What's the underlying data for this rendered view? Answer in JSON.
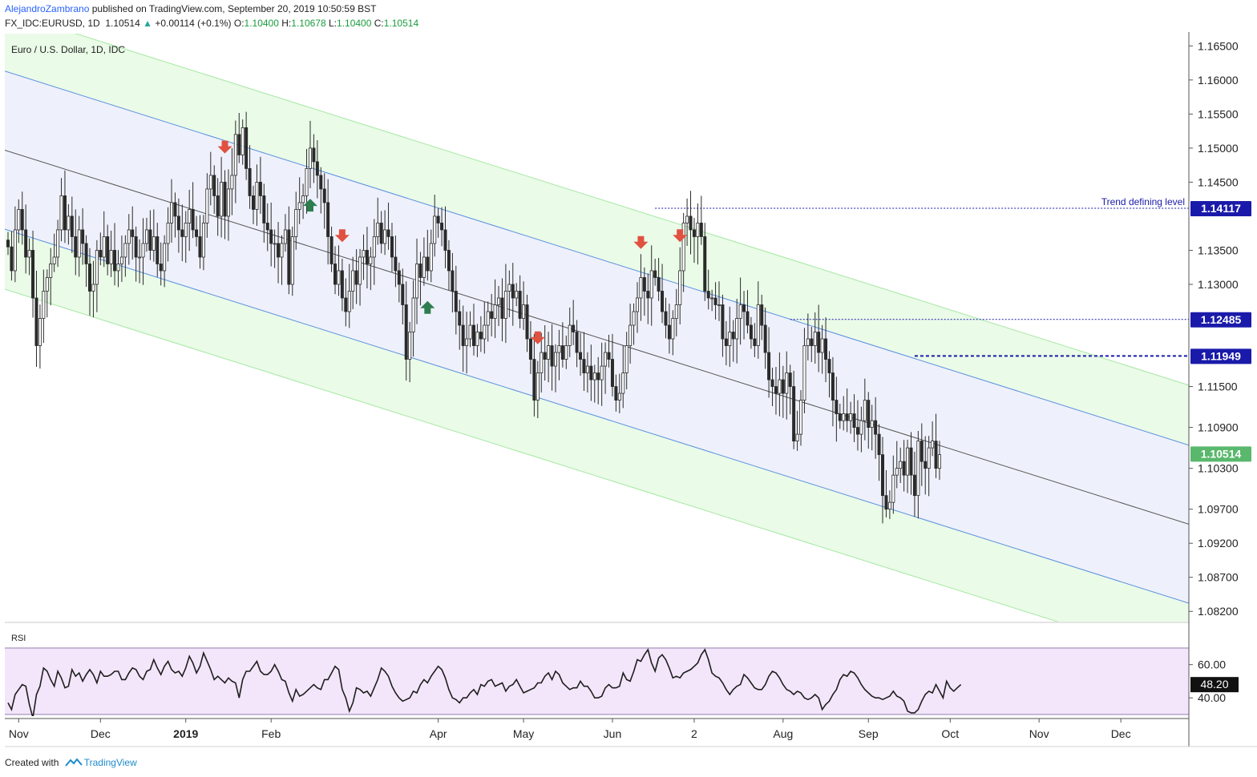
{
  "header": {
    "author": "AlejandroZambrano",
    "published_text": "published on TradingView.com, September 20, 2019 10:50:59 BST",
    "symbol": "FX_IDC:EURUSD, 1D",
    "last": "1.10514",
    "change_arrow": "▲",
    "change": "+0.00114 (+0.1%)",
    "o_label": "O:",
    "o_value": "1.10400",
    "h_label": "H:",
    "h_value": "1.10678",
    "l_label": "L:",
    "l_value": "1.10400",
    "c_label": "C:",
    "c_value": "1.10514"
  },
  "footer": {
    "created_with": "Created with",
    "brand": "TradingView"
  },
  "colors": {
    "candle": "#2a2a2a",
    "channel_blue": "#5b8fe0",
    "channel_fill": "#eef1fb",
    "outer_fill": "#eafbe8",
    "outer_edge": "#9ee69a",
    "mid_line": "#555555",
    "level_blue": "#1a1aaa",
    "arrow_down": "#e0513f",
    "arrow_up": "#2e7d4f",
    "rsi_band": "#f3e6fb",
    "rsi_band_edge": "#b7a3c9",
    "price_label_bg": "#1a1aaa",
    "current_label_bg": "#59b86c"
  },
  "chart_data": {
    "type": "candlestick",
    "title": "Euro / U.S. Dollar, 1D, IDC",
    "instrument": "EURUSD",
    "x_axis_labels": [
      "Nov",
      "Dec",
      "2019",
      "Feb",
      "Apr",
      "May",
      "Jun",
      "2",
      "Aug",
      "Sep",
      "Oct",
      "Nov",
      "Dec"
    ],
    "y_axis_ticks": [
      "1.16500",
      "1.16000",
      "1.15500",
      "1.15000",
      "1.14500",
      "1.13500",
      "1.13000",
      "1.11500",
      "1.10900",
      "1.10300",
      "1.09700",
      "1.09200",
      "1.08700",
      "1.08200"
    ],
    "ylim": [
      1.0805,
      1.1668
    ],
    "close_series": [
      1.1355,
      1.132,
      1.138,
      1.141,
      1.138,
      1.134,
      1.135,
      1.128,
      1.121,
      1.125,
      1.129,
      1.131,
      1.133,
      1.134,
      1.138,
      1.143,
      1.138,
      1.14,
      1.137,
      1.134,
      1.138,
      1.136,
      1.133,
      1.129,
      1.13,
      1.135,
      1.134,
      1.137,
      1.133,
      1.135,
      1.132,
      1.133,
      1.134,
      1.136,
      1.138,
      1.137,
      1.134,
      1.134,
      1.136,
      1.138,
      1.135,
      1.137,
      1.133,
      1.132,
      1.136,
      1.139,
      1.142,
      1.14,
      1.138,
      1.137,
      1.139,
      1.141,
      1.138,
      1.137,
      1.134,
      1.139,
      1.144,
      1.146,
      1.143,
      1.14,
      1.145,
      1.14,
      1.144,
      1.146,
      1.152,
      1.149,
      1.153,
      1.147,
      1.143,
      1.141,
      1.145,
      1.143,
      1.139,
      1.138,
      1.136,
      1.136,
      1.134,
      1.136,
      1.138,
      1.13,
      1.137,
      1.141,
      1.142,
      1.143,
      1.147,
      1.15,
      1.148,
      1.146,
      1.144,
      1.142,
      1.137,
      1.133,
      1.13,
      1.132,
      1.128,
      1.126,
      1.129,
      1.132,
      1.13,
      1.134,
      1.135,
      1.133,
      1.134,
      1.137,
      1.139,
      1.136,
      1.138,
      1.137,
      1.134,
      1.132,
      1.13,
      1.127,
      1.119,
      1.123,
      1.128,
      1.133,
      1.131,
      1.134,
      1.132,
      1.136,
      1.14,
      1.139,
      1.138,
      1.135,
      1.132,
      1.129,
      1.126,
      1.124,
      1.121,
      1.122,
      1.124,
      1.121,
      1.123,
      1.122,
      1.124,
      1.126,
      1.125,
      1.127,
      1.128,
      1.125,
      1.129,
      1.13,
      1.128,
      1.129,
      1.125,
      1.127,
      1.122,
      1.119,
      1.113,
      1.117,
      1.12,
      1.119,
      1.121,
      1.118,
      1.12,
      1.121,
      1.119,
      1.121,
      1.124,
      1.123,
      1.12,
      1.119,
      1.117,
      1.118,
      1.116,
      1.117,
      1.116,
      1.118,
      1.12,
      1.119,
      1.115,
      1.113,
      1.114,
      1.117,
      1.121,
      1.124,
      1.126,
      1.128,
      1.131,
      1.129,
      1.128,
      1.132,
      1.131,
      1.129,
      1.126,
      1.124,
      1.122,
      1.125,
      1.127,
      1.132,
      1.139,
      1.14,
      1.138,
      1.137,
      1.139,
      1.137,
      1.129,
      1.128,
      1.128,
      1.127,
      1.127,
      1.122,
      1.121,
      1.123,
      1.122,
      1.125,
      1.127,
      1.126,
      1.124,
      1.122,
      1.121,
      1.127,
      1.124,
      1.12,
      1.116,
      1.115,
      1.114,
      1.116,
      1.114,
      1.117,
      1.115,
      1.107,
      1.108,
      1.113,
      1.121,
      1.122,
      1.121,
      1.123,
      1.12,
      1.122,
      1.119,
      1.117,
      1.113,
      1.111,
      1.11,
      1.111,
      1.11,
      1.111,
      1.109,
      1.108,
      1.11,
      1.113,
      1.109,
      1.11,
      1.108,
      1.105,
      1.099,
      1.097,
      1.098,
      1.102,
      1.103,
      1.104,
      1.102,
      1.106,
      1.102,
      1.099,
      1.107,
      1.104,
      1.103,
      1.106,
      1.107,
      1.103,
      1.105
    ]
  },
  "indicators": {
    "channel": {
      "mid_start": 1.1497,
      "mid_end": 1.0948,
      "half_width": 0.0116,
      "outer_width": 0.0088
    },
    "levels": [
      {
        "value": 1.14117,
        "label": "1.14117",
        "note": "Trend defining level"
      },
      {
        "value": 1.12485,
        "label": "1.12485"
      },
      {
        "value": 1.11949,
        "label": "1.11949"
      }
    ],
    "current": {
      "value": 1.10514,
      "label": "1.10514"
    },
    "markers_down": [
      {
        "bar": 61
      },
      {
        "bar": 94
      },
      {
        "bar": 149
      },
      {
        "bar": 178
      },
      {
        "bar": 189
      }
    ],
    "markers_up": [
      {
        "bar": 85
      },
      {
        "bar": 118
      }
    ],
    "rsi": {
      "label": "RSI",
      "ticks": [
        "60.00",
        "40.00"
      ],
      "current": "48.20",
      "ylim": [
        29,
        83
      ],
      "band": [
        30,
        70
      ],
      "series": [
        37,
        33,
        42,
        45,
        48,
        47,
        36,
        28,
        42,
        47,
        58,
        56,
        51,
        47,
        56,
        52,
        46,
        47,
        57,
        53,
        55,
        50,
        54,
        57,
        54,
        49,
        56,
        53,
        53,
        54,
        56,
        56,
        51,
        51,
        55,
        58,
        57,
        53,
        51,
        56,
        57,
        63,
        58,
        54,
        59,
        62,
        57,
        55,
        56,
        53,
        58,
        65,
        61,
        55,
        59,
        67,
        62,
        57,
        51,
        53,
        51,
        49,
        52,
        50,
        49,
        40,
        51,
        56,
        56,
        59,
        62,
        56,
        54,
        54,
        56,
        60,
        56,
        51,
        50,
        43,
        38,
        45,
        41,
        42,
        44,
        46,
        48,
        46,
        45,
        51,
        51,
        55,
        59,
        57,
        45,
        40,
        32,
        37,
        46,
        45,
        43,
        44,
        41,
        46,
        51,
        58,
        56,
        53,
        47,
        43,
        40,
        38,
        39,
        40,
        44,
        43,
        48,
        51,
        49,
        53,
        56,
        59,
        57,
        52,
        45,
        40,
        39,
        37,
        40,
        40,
        43,
        45,
        42,
        48,
        47,
        50,
        51,
        47,
        48,
        49,
        44,
        47,
        48,
        51,
        47,
        43,
        44,
        45,
        46,
        49,
        49,
        53,
        55,
        51,
        56,
        54,
        49,
        47,
        45,
        46,
        46,
        50,
        47,
        47,
        44,
        40,
        40,
        41,
        46,
        48,
        46,
        46,
        47,
        55,
        51,
        50,
        56,
        63,
        62,
        66,
        69,
        61,
        56,
        64,
        66,
        63,
        58,
        52,
        53,
        52,
        55,
        56,
        57,
        59,
        61,
        66,
        69,
        63,
        55,
        53,
        52,
        49,
        45,
        42,
        45,
        47,
        48,
        54,
        52,
        49,
        46,
        45,
        45,
        48,
        53,
        56,
        55,
        52,
        48,
        45,
        44,
        42,
        44,
        43,
        40,
        39,
        40,
        42,
        40,
        33,
        36,
        38,
        42,
        45,
        51,
        54,
        53,
        56,
        55,
        52,
        48,
        45,
        43,
        41,
        40,
        40,
        39,
        40,
        41,
        44,
        41,
        40,
        38,
        32,
        31,
        31,
        33,
        38,
        42,
        44,
        43,
        48,
        44,
        40,
        50,
        46,
        44,
        46,
        48
      ]
    }
  }
}
